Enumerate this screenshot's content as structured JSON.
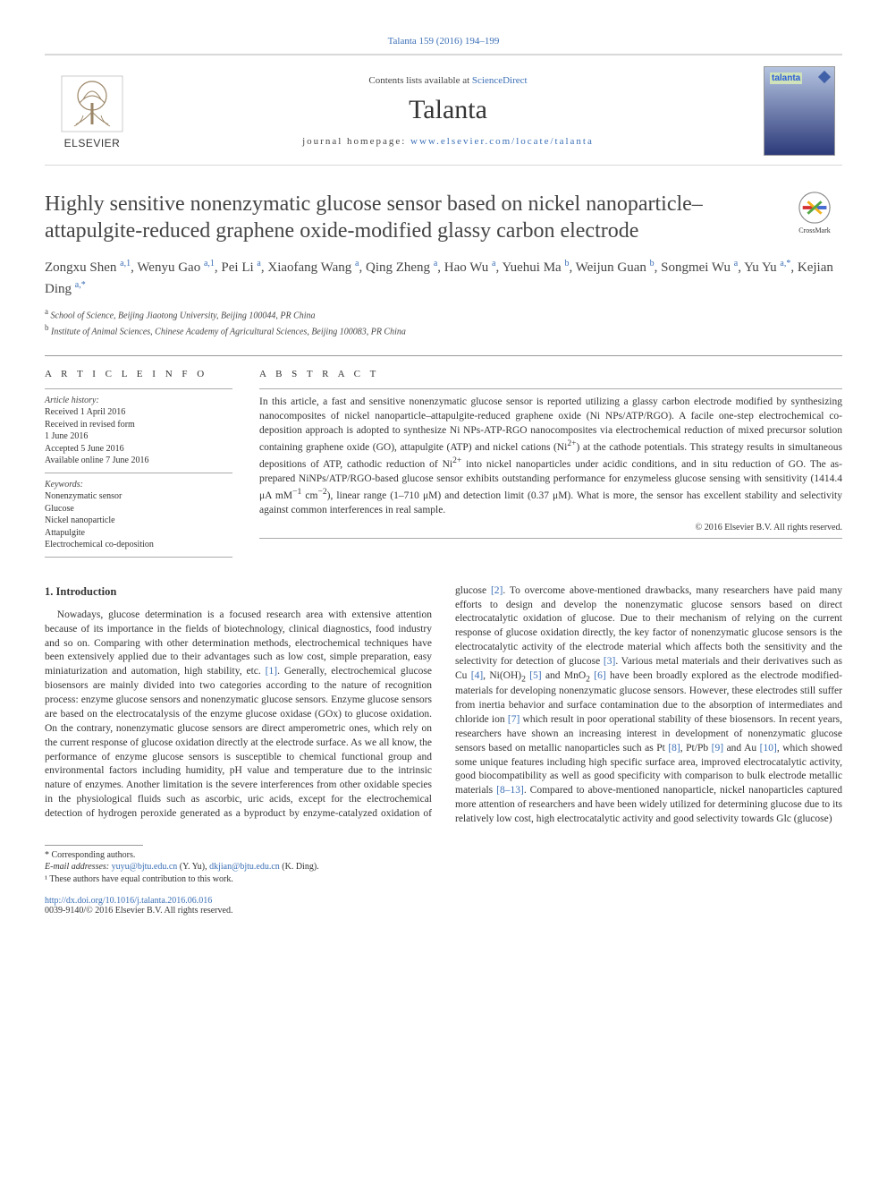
{
  "topCitation": "Talanta 159 (2016) 194–199",
  "header": {
    "contentsPrefix": "Contents lists available at ",
    "contentsLink": "ScienceDirect",
    "journalName": "Talanta",
    "homepagePrefix": "journal homepage: ",
    "homepageUrl": "www.elsevier.com/locate/talanta",
    "publisherName": "ELSEVIER",
    "coverTopLabel": "talanta"
  },
  "crossmarkLabel": "CrossMark",
  "title": "Highly sensitive nonenzymatic glucose sensor based on nickel nanoparticle–attapulgite-reduced graphene oxide-modified glassy carbon electrode",
  "authorsHtml": "Zongxu Shen <span class='sup'>a,1</span>, Wenyu Gao <span class='sup'>a,1</span>, Pei Li <span class='sup'>a</span>, Xiaofang Wang <span class='sup'>a</span>, Qing Zheng <span class='sup'>a</span>, Hao Wu <span class='sup'>a</span>, Yuehui Ma <span class='sup'>b</span>, Weijun Guan <span class='sup'>b</span>, Songmei Wu <span class='sup'>a</span>, Yu Yu <span class='sup'>a,*</span>, Kejian Ding <span class='sup'>a,*</span>",
  "affiliations": {
    "a": "School of Science, Beijing Jiaotong University, Beijing 100044, PR China",
    "b": "Institute of Animal Sciences, Chinese Academy of Agricultural Sciences, Beijing 100083, PR China"
  },
  "articleInfo": {
    "heading": "A R T I C L E   I N F O",
    "historyLabel": "Article history:",
    "history": [
      "Received 1 April 2016",
      "Received in revised form",
      "1 June 2016",
      "Accepted 5 June 2016",
      "Available online 7 June 2016"
    ],
    "keywordsLabel": "Keywords:",
    "keywords": [
      "Nonenzymatic sensor",
      "Glucose",
      "Nickel nanoparticle",
      "Attapulgite",
      "Electrochemical co-deposition"
    ]
  },
  "abstract": {
    "heading": "A B S T R A C T",
    "textHtml": "In this article, a fast and sensitive nonenzymatic glucose sensor is reported utilizing a glassy carbon electrode modified by synthesizing nanocomposites of nickel nanoparticle–attapulgite-reduced graphene oxide (Ni NPs/ATP/RGO). A facile one-step electrochemical co-deposition approach is adopted to synthesize Ni NPs-ATP-RGO nanocomposites via electrochemical reduction of mixed precursor solution containing graphene oxide (GO), attapulgite (ATP) and nickel cations (Ni<sup>2+</sup>) at the cathode potentials. This strategy results in simultaneous depositions of ATP, cathodic reduction of Ni<sup>2+</sup> into nickel nanoparticles under acidic conditions, and in situ reduction of GO. The as-prepared NiNPs/ATP/RGO-based glucose sensor exhibits outstanding performance for enzymeless glucose sensing with sensitivity (1414.4 μA mM<sup>−1</sup> cm<sup>−2</sup>), linear range (1–710 μM) and detection limit (0.37 μM). What is more, the sensor has excellent stability and selectivity against common interferences in real sample.",
    "copyright": "© 2016 Elsevier B.V. All rights reserved."
  },
  "section1": {
    "heading": "1.  Introduction",
    "p1Html": "Nowadays, glucose determination is a focused research area with extensive attention because of its importance in the fields of biotechnology, clinical diagnostics, food industry and so on. Comparing with other determination methods, electrochemical techniques have been extensively applied due to their advantages such as low cost, simple preparation, easy miniaturization and automation, high stability, etc. <span class='cite'>[1]</span>. Generally, electrochemical glucose biosensors are mainly divided into two categories according to the nature of recognition process: enzyme glucose sensors and nonenzymatic glucose sensors. Enzyme glucose sensors are based on the electrocatalysis of the enzyme glucose oxidase (GOx) to glucose oxidation. On the contrary, nonenzymatic glucose sensors are direct amperometric ones, which rely on the current response of glucose oxidation directly at the electrode surface. As we all know, the performance of enzyme glucose sensors is susceptible to chemical functional group and environmental factors including humidity, pH value and temperature due to the intrinsic nature of enzymes. Another limitation is the severe interferences from other oxidable species in the physiological fluids such as ascorbic, uric acids, except for the electrochemical detection of hydrogen peroxide generated as a byproduct by enzyme-catalyzed oxidation of glucose <span class='cite'>[2]</span>. To overcome above-mentioned drawbacks, many researchers have paid many efforts to design and develop the nonenzymatic glucose sensors based on direct electrocatalytic oxidation of glucose. Due to their mechanism of relying on the current response of glucose oxidation directly, the key factor of nonenzymatic glucose sensors is the electrocatalytic activity of the electrode material which affects both the sensitivity and the selectivity for detection of glucose <span class='cite'>[3]</span>. Various metal materials and their derivatives such as Cu <span class='cite'>[4]</span>, Ni(OH)<sub>2</sub> <span class='cite'>[5]</span> and MnO<sub>2</sub> <span class='cite'>[6]</span> have been broadly explored as the electrode modified-materials for developing nonenzymatic glucose sensors. However, these electrodes still suffer from inertia behavior and surface contamination due to the absorption of intermediates and chloride ion <span class='cite'>[7]</span> which result in poor operational stability of these biosensors. In recent years, researchers have shown an increasing interest in development of nonenzymatic glucose sensors based on metallic nanoparticles such as Pt <span class='cite'>[8]</span>, Pt/Pb <span class='cite'>[9]</span> and Au <span class='cite'>[10]</span>, which showed some unique features including high specific surface area, improved electrocatalytic activity, good biocompatibility as well as good specificity with comparison to bulk electrode metallic materials <span class='cite'>[8–13]</span>. Compared to above-mentioned nanoparticle, nickel nanoparticles captured more attention of researchers and have been widely utilized for determining glucose due to its relatively low cost, high electrocatalytic activity and good selectivity towards Glc (glucose)"
  },
  "footnotes": {
    "corresp": "* Corresponding authors.",
    "emailLabel": "E-mail addresses: ",
    "email1": "yuyu@bjtu.edu.cn",
    "email1Who": " (Y. Yu), ",
    "email2": "dkjian@bjtu.edu.cn",
    "email2Who": " (K. Ding).",
    "equal": "¹ These authors have equal contribution to this work."
  },
  "bottom": {
    "doi": "http://dx.doi.org/10.1016/j.talanta.2016.06.016",
    "issnLine": "0039-9140/© 2016 Elsevier B.V. All rights reserved."
  },
  "colors": {
    "link": "#3b6fb6",
    "rule": "#999999",
    "text": "#333333"
  }
}
